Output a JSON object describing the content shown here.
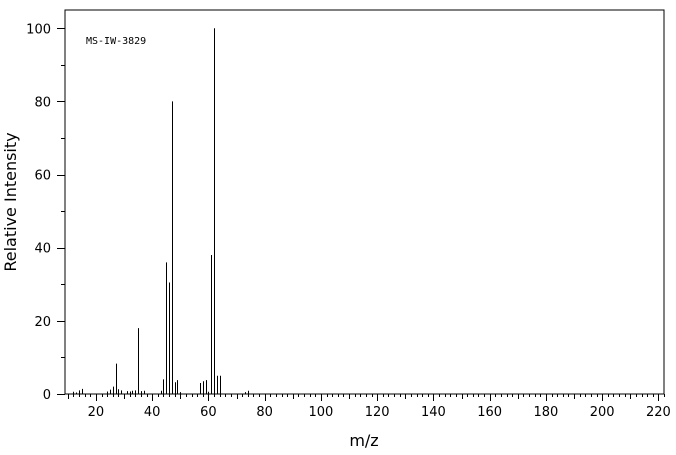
{
  "chart_data": {
    "type": "bar",
    "title": "",
    "annotation": "MS-IW-3829",
    "xlabel": "m/z",
    "ylabel": "Relative Intensity",
    "xlim": [
      9,
      222
    ],
    "ylim": [
      0,
      105
    ],
    "x_major_ticks": [
      20,
      40,
      60,
      80,
      100,
      120,
      140,
      160,
      180,
      200,
      220
    ],
    "y_major_ticks": [
      0,
      20,
      40,
      60,
      80,
      100
    ],
    "grid": false,
    "colors": {
      "axis": "#000000",
      "bars": "#000000",
      "background": "#ffffff"
    },
    "peaks": [
      {
        "mz": 12,
        "intensity": 0.6
      },
      {
        "mz": 13,
        "intensity": 0.4
      },
      {
        "mz": 14,
        "intensity": 1.0
      },
      {
        "mz": 15,
        "intensity": 1.4
      },
      {
        "mz": 24,
        "intensity": 0.7
      },
      {
        "mz": 25,
        "intensity": 1.2
      },
      {
        "mz": 26,
        "intensity": 2.0
      },
      {
        "mz": 27,
        "intensity": 8.3
      },
      {
        "mz": 28,
        "intensity": 1.3
      },
      {
        "mz": 29,
        "intensity": 1.0
      },
      {
        "mz": 31,
        "intensity": 0.8
      },
      {
        "mz": 32,
        "intensity": 0.7
      },
      {
        "mz": 33,
        "intensity": 0.9
      },
      {
        "mz": 34,
        "intensity": 1.0
      },
      {
        "mz": 35,
        "intensity": 18.0
      },
      {
        "mz": 36,
        "intensity": 0.8
      },
      {
        "mz": 37,
        "intensity": 0.9
      },
      {
        "mz": 43,
        "intensity": 0.9
      },
      {
        "mz": 44,
        "intensity": 4.0
      },
      {
        "mz": 45,
        "intensity": 36.0
      },
      {
        "mz": 46,
        "intensity": 30.5
      },
      {
        "mz": 47,
        "intensity": 80.0
      },
      {
        "mz": 48,
        "intensity": 3.2
      },
      {
        "mz": 49,
        "intensity": 3.8
      },
      {
        "mz": 50,
        "intensity": 0.5
      },
      {
        "mz": 57,
        "intensity": 3.0
      },
      {
        "mz": 58,
        "intensity": 3.5
      },
      {
        "mz": 59,
        "intensity": 3.8
      },
      {
        "mz": 60,
        "intensity": 0.6
      },
      {
        "mz": 61,
        "intensity": 38.0
      },
      {
        "mz": 62,
        "intensity": 100.0
      },
      {
        "mz": 63,
        "intensity": 5.0
      },
      {
        "mz": 64,
        "intensity": 5.0
      },
      {
        "mz": 73,
        "intensity": 0.5
      },
      {
        "mz": 74,
        "intensity": 0.9
      }
    ]
  }
}
